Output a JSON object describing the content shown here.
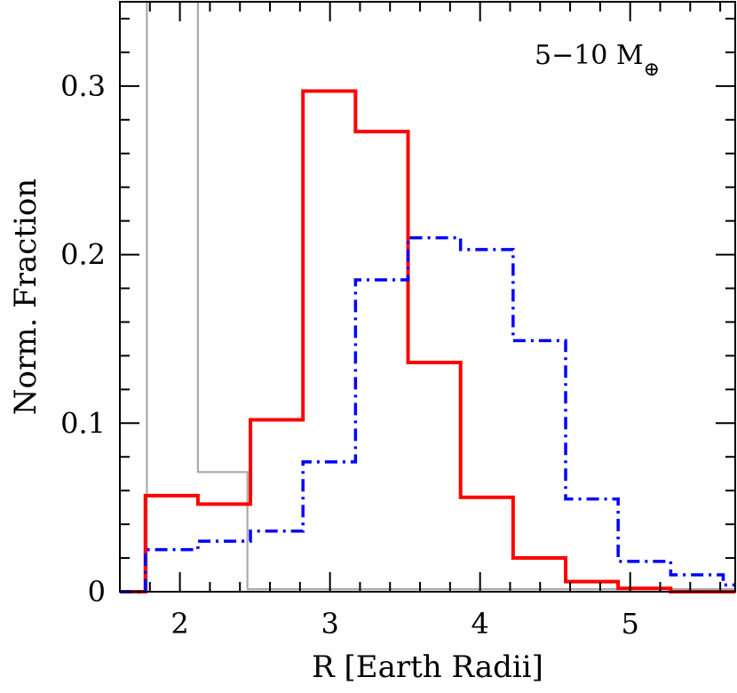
{
  "chart_data": {
    "type": "histogram-step",
    "xlabel": "R [Earth Radii]",
    "ylabel": "Norm. Fraction",
    "annotation": {
      "main": "5−10 M",
      "sub": "⊕"
    },
    "xlim": [
      1.6,
      5.7
    ],
    "ylim": [
      0,
      0.35
    ],
    "x_ticks": [
      2,
      3,
      4,
      5
    ],
    "x_tick_labels": [
      "2",
      "3",
      "4",
      "5"
    ],
    "y_ticks": [
      0,
      0.1,
      0.2,
      0.3
    ],
    "y_tick_labels": [
      "0",
      "0.1",
      "0.2",
      "0.3"
    ],
    "series": [
      {
        "color": "#aaaaaa",
        "style": "solid-thin",
        "edges": [
          1.6,
          1.78,
          2.12,
          2.45,
          5.7
        ],
        "values": [
          0.0,
          0.35,
          0.071,
          0.0015
        ]
      },
      {
        "color": "#ff0000",
        "style": "solid",
        "edges": [
          1.6,
          1.77,
          2.12,
          2.47,
          2.82,
          3.17,
          3.52,
          3.87,
          4.22,
          4.57,
          4.92,
          5.27,
          5.62,
          5.7
        ],
        "values": [
          0.0,
          0.057,
          0.052,
          0.102,
          0.297,
          0.273,
          0.136,
          0.056,
          0.02,
          0.006,
          0.002,
          0.0,
          0.0
        ]
      },
      {
        "color": "#0000ff",
        "style": "dashdot",
        "edges": [
          1.6,
          1.77,
          2.12,
          2.47,
          2.82,
          3.17,
          3.52,
          3.87,
          4.22,
          4.57,
          4.92,
          5.27,
          5.62,
          5.7
        ],
        "values": [
          0.0,
          0.025,
          0.03,
          0.036,
          0.077,
          0.185,
          0.21,
          0.203,
          0.149,
          0.055,
          0.018,
          0.01,
          0.004
        ]
      }
    ]
  }
}
